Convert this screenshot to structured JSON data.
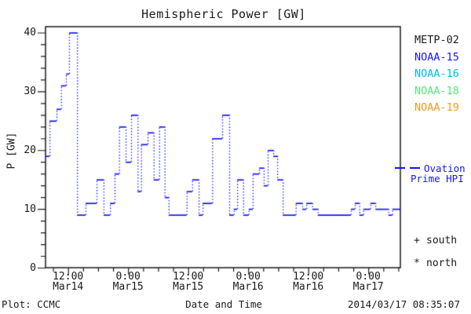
{
  "title": "Hemispheric Power [GW]",
  "axes": {
    "ylabel": "P [GW]",
    "xlabel": "Date and Time"
  },
  "footer": {
    "plot_credit": "Plot: CCMC",
    "timestamp": "2014/03/17 08:35:07"
  },
  "legend": {
    "satellites": [
      {
        "label": "METP-02",
        "color": "#1a1a1a"
      },
      {
        "label": "NOAA-15",
        "color": "#1515ff"
      },
      {
        "label": "NOAA-16",
        "color": "#00b8ee"
      },
      {
        "label": "NOAA-18",
        "color": "#55e678"
      },
      {
        "label": "NOAA-19",
        "color": "#f09920"
      }
    ],
    "model": {
      "label_line1": "Ovation",
      "label_line2": "Prime HPI",
      "color": "#1515ff"
    },
    "markers": [
      {
        "symbol": "+",
        "label": "south"
      },
      {
        "symbol": "*",
        "label": "north"
      }
    ]
  },
  "chart_data": {
    "type": "line",
    "subtype": "histogram-step-dotted",
    "title": "Hemispheric Power [GW]",
    "xlabel": "Date and Time",
    "ylabel": "P [GW]",
    "ylim": [
      0,
      41
    ],
    "yticks": [
      0,
      10,
      20,
      30,
      40
    ],
    "y_minor_step": 2,
    "grid": false,
    "legend_position": "right-outside",
    "x_span_hours": 70.9,
    "x_minor_step_hours": 3,
    "x_major_ticks": [
      {
        "hour": 4.5,
        "time": "12:00",
        "date": "Mar14"
      },
      {
        "hour": 16.5,
        "time": "0:00",
        "date": "Mar15"
      },
      {
        "hour": 28.5,
        "time": "12:00",
        "date": "Mar15"
      },
      {
        "hour": 40.5,
        "time": "0:00",
        "date": "Mar16"
      },
      {
        "hour": 52.5,
        "time": "12:00",
        "date": "Mar16"
      },
      {
        "hour": 64.5,
        "time": "0:00",
        "date": "Mar17"
      }
    ],
    "series": [
      {
        "name": "Ovation Prime HPI",
        "color": "#1515ff",
        "units": "GW",
        "steps_hour_gw": [
          [
            0.0,
            19
          ],
          [
            0.8,
            25
          ],
          [
            2.2,
            27
          ],
          [
            3.1,
            31
          ],
          [
            4.1,
            33
          ],
          [
            4.7,
            40
          ],
          [
            6.3,
            9
          ],
          [
            8.0,
            11
          ],
          [
            10.2,
            15
          ],
          [
            11.6,
            9
          ],
          [
            12.9,
            11
          ],
          [
            13.8,
            16
          ],
          [
            14.7,
            24
          ],
          [
            16.0,
            18
          ],
          [
            17.1,
            26
          ],
          [
            18.4,
            13
          ],
          [
            19.1,
            21
          ],
          [
            20.4,
            23
          ],
          [
            21.6,
            15
          ],
          [
            22.7,
            24
          ],
          [
            23.8,
            12
          ],
          [
            24.6,
            9
          ],
          [
            28.2,
            13
          ],
          [
            29.3,
            15
          ],
          [
            30.6,
            9
          ],
          [
            31.4,
            11
          ],
          [
            33.3,
            22
          ],
          [
            35.3,
            26
          ],
          [
            36.7,
            9
          ],
          [
            37.6,
            10
          ],
          [
            38.3,
            15
          ],
          [
            39.5,
            9
          ],
          [
            40.6,
            10
          ],
          [
            41.4,
            16
          ],
          [
            42.7,
            17
          ],
          [
            43.6,
            14
          ],
          [
            44.4,
            20
          ],
          [
            45.5,
            19
          ],
          [
            46.3,
            15
          ],
          [
            47.4,
            9
          ],
          [
            50.0,
            11
          ],
          [
            51.3,
            10
          ],
          [
            52.1,
            11
          ],
          [
            53.3,
            10
          ],
          [
            54.4,
            9
          ],
          [
            61.0,
            10
          ],
          [
            61.8,
            11
          ],
          [
            62.7,
            9
          ],
          [
            63.5,
            10
          ],
          [
            64.9,
            11
          ],
          [
            65.9,
            10
          ],
          [
            68.5,
            9
          ],
          [
            69.3,
            10
          ]
        ]
      }
    ]
  }
}
